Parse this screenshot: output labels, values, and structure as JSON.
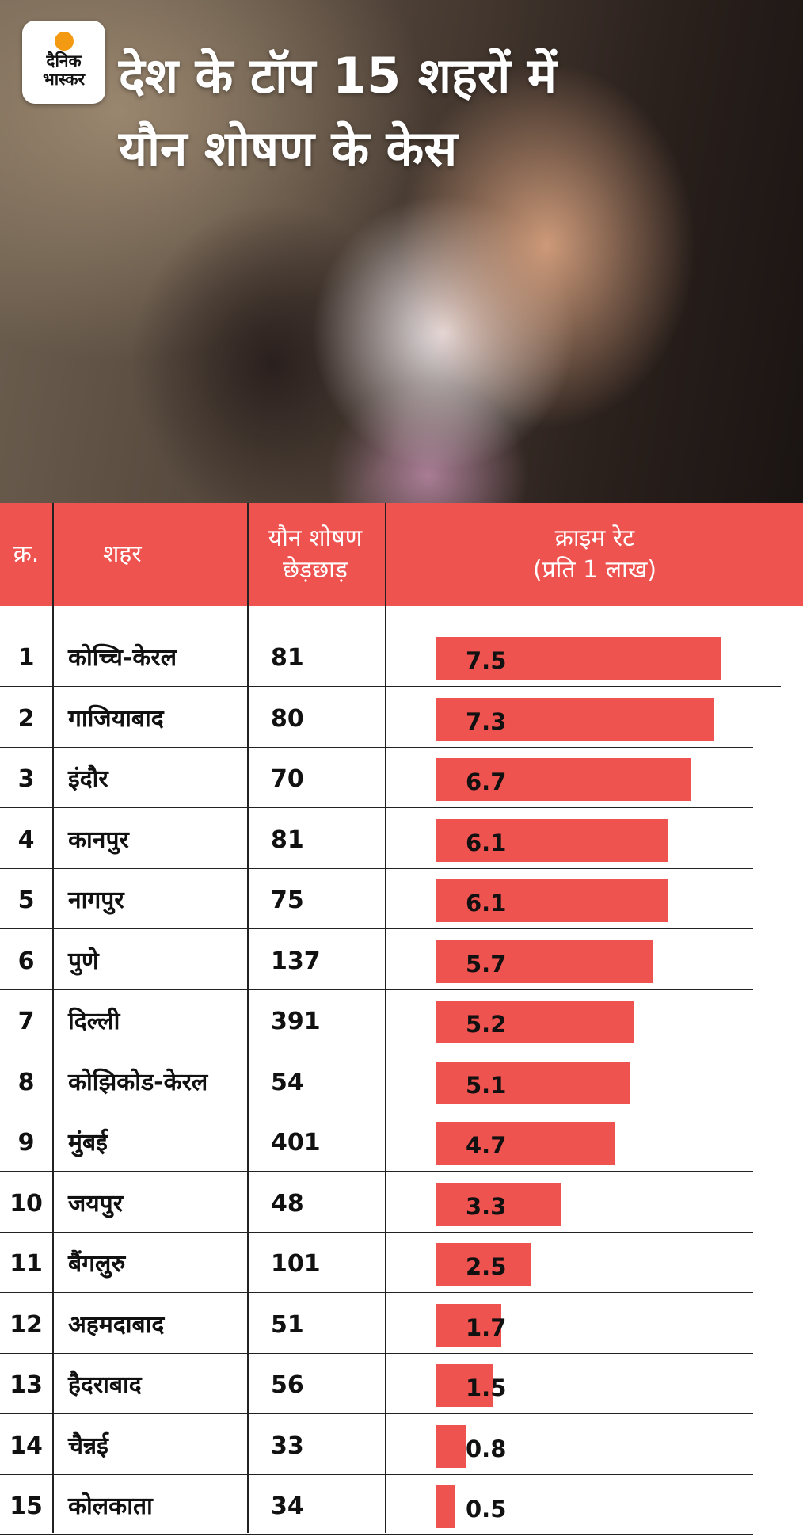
{
  "brand": {
    "name": "दैनिक\nभास्कर"
  },
  "title": "देश के टॉप 15 शहरों में\nयौन शोषण के केस",
  "colors": {
    "header": "#ef5350",
    "bar": "#ef5350",
    "logo_dot": "#f39a12"
  },
  "chart_data": {
    "type": "table",
    "headers": {
      "rank": "क्र.",
      "city": "शहर",
      "cases": "यौन शोषण\nछेड़छाड़",
      "rate": "क्राइम रेट\n(प्रति 1 लाख)"
    },
    "rate_max": 8,
    "rows": [
      {
        "rank": "1",
        "city": "कोच्चि-केरल",
        "cases": "81",
        "rate": 7.5,
        "rate_label": "7.5"
      },
      {
        "rank": "2",
        "city": "गाजियाबाद",
        "cases": "80",
        "rate": 7.3,
        "rate_label": "7.3"
      },
      {
        "rank": "3",
        "city": "इंदौर",
        "cases": "70",
        "rate": 6.7,
        "rate_label": "6.7"
      },
      {
        "rank": "4",
        "city": "कानपुर",
        "cases": "81",
        "rate": 6.1,
        "rate_label": "6.1"
      },
      {
        "rank": "5",
        "city": "नागपुर",
        "cases": "75",
        "rate": 6.1,
        "rate_label": "6.1"
      },
      {
        "rank": "6",
        "city": "पुणे",
        "cases": "137",
        "rate": 5.7,
        "rate_label": "5.7"
      },
      {
        "rank": "7",
        "city": "दिल्ली",
        "cases": "391",
        "rate": 5.2,
        "rate_label": "5.2"
      },
      {
        "rank": "8",
        "city": "कोझिकोड-केरल",
        "cases": "54",
        "rate": 5.1,
        "rate_label": "5.1"
      },
      {
        "rank": "9",
        "city": "मुंबई",
        "cases": "401",
        "rate": 4.7,
        "rate_label": "4.7"
      },
      {
        "rank": "10",
        "city": "जयपुर",
        "cases": "48",
        "rate": 3.3,
        "rate_label": "3.3"
      },
      {
        "rank": "11",
        "city": "बैंगलुरु",
        "cases": "101",
        "rate": 2.5,
        "rate_label": "2.5"
      },
      {
        "rank": "12",
        "city": "अहमदाबाद",
        "cases": "51",
        "rate": 1.7,
        "rate_label": "1.7"
      },
      {
        "rank": "13",
        "city": "हैदराबाद",
        "cases": "56",
        "rate": 1.5,
        "rate_label": "1.5"
      },
      {
        "rank": "14",
        "city": "चैन्नई",
        "cases": "33",
        "rate": 0.8,
        "rate_label": "0.8"
      },
      {
        "rank": "15",
        "city": "कोलकाता",
        "cases": "34",
        "rate": 0.5,
        "rate_label": "0.5"
      }
    ]
  }
}
